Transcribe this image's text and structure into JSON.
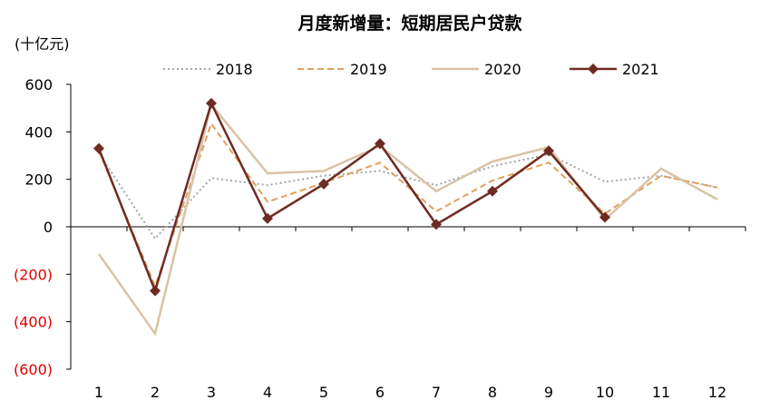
{
  "chart_data": {
    "type": "line",
    "title": "月度新增量：短期居民户贷款",
    "unit_label": "(十亿元)",
    "x": [
      1,
      2,
      3,
      4,
      5,
      6,
      7,
      8,
      9,
      10,
      11,
      12
    ],
    "x_tick_labels": [
      "1",
      "2",
      "3",
      "4",
      "5",
      "6",
      "7",
      "8",
      "9",
      "10",
      "11",
      "12"
    ],
    "ylim": [
      -600,
      600
    ],
    "y_ticks": [
      600,
      400,
      200,
      0,
      -200,
      -400,
      -600
    ],
    "y_tick_labels": [
      "600",
      "400",
      "200",
      "0",
      "(200)",
      "(400)",
      "(600)"
    ],
    "negative_tick_color": "#e00000",
    "legend": "top",
    "grid": false,
    "series": [
      {
        "name": "2018",
        "color": "#a6a6a6",
        "style": "dotted",
        "values": [
          310,
          -50,
          205,
          175,
          215,
          235,
          175,
          255,
          305,
          190,
          215,
          165
        ]
      },
      {
        "name": "2019",
        "color": "#e0a060",
        "style": "dashed",
        "values": [
          320,
          -250,
          435,
          105,
          185,
          270,
          65,
          195,
          270,
          55,
          215,
          165
        ]
      },
      {
        "name": "2020",
        "color": "#d9c3a5",
        "style": "solid",
        "values": [
          -115,
          -450,
          515,
          225,
          235,
          340,
          150,
          275,
          335,
          30,
          245,
          115
        ]
      },
      {
        "name": "2021",
        "color": "#6e2b22",
        "style": "solid-diamond",
        "values": [
          330,
          -270,
          520,
          35,
          180,
          350,
          10,
          150,
          320,
          40,
          null,
          null
        ]
      }
    ]
  }
}
